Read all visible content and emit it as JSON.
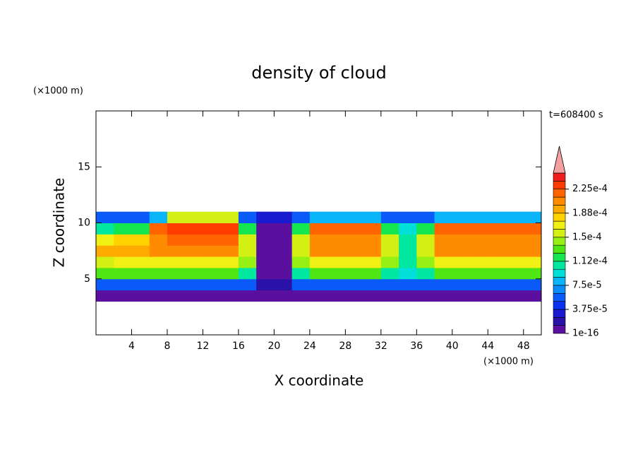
{
  "chart_data": {
    "type": "contour",
    "title": "density of cloud",
    "x_label": "X coordinate",
    "y_label": "Z coordinate",
    "x_unit": "(×1000 m)",
    "y_unit": "(×1000 m)",
    "annotation": "t=608400 s",
    "xlim": [
      0,
      50
    ],
    "ylim": [
      0,
      20
    ],
    "xticks": [
      4,
      8,
      12,
      16,
      20,
      24,
      28,
      32,
      36,
      40,
      44,
      48
    ],
    "yticks": [
      5,
      10,
      15
    ],
    "x": [
      1,
      3,
      5,
      7,
      9,
      11,
      13,
      15,
      17,
      19,
      21,
      23,
      25,
      27,
      29,
      31,
      33,
      35,
      37,
      39,
      41,
      43,
      45,
      47,
      49
    ],
    "y": [
      3.5,
      4.5,
      5.5,
      6.5,
      7.5,
      8.5,
      9.5,
      10.5
    ],
    "z": [
      [
        1e-05,
        1e-05,
        1e-05,
        1e-05,
        1e-05,
        1e-05,
        1e-05,
        1e-05,
        1e-05,
        1e-05,
        1e-05,
        1e-05,
        1e-05,
        1e-05,
        1e-05,
        1e-05,
        1e-05,
        1e-05,
        1e-05,
        1e-05,
        1e-05,
        1e-05,
        1e-05,
        1e-05,
        1e-05
      ],
      [
        6e-05,
        5e-05,
        5e-05,
        6e-05,
        6e-05,
        6e-05,
        6e-05,
        6e-05,
        5e-05,
        2e-05,
        2e-05,
        5e-05,
        6e-05,
        6e-05,
        6e-05,
        6e-05,
        5e-05,
        5e-05,
        5e-05,
        6e-05,
        6e-05,
        6e-05,
        6e-05,
        6e-05,
        6e-05
      ],
      [
        0.00013,
        0.00013,
        0.00013,
        0.00013,
        0.00013,
        0.00013,
        0.00013,
        0.00013,
        0.00011,
        1e-05,
        1e-05,
        0.00011,
        0.00013,
        0.00013,
        0.00013,
        0.00013,
        0.00011,
        9e-05,
        0.00011,
        0.00013,
        0.00013,
        0.00013,
        0.00013,
        0.00013,
        0.00013
      ],
      [
        0.00016,
        0.00017,
        0.00017,
        0.00017,
        0.00017,
        0.00017,
        0.00017,
        0.00017,
        0.00014,
        1e-05,
        1e-05,
        0.00014,
        0.00017,
        0.00017,
        0.00017,
        0.00017,
        0.00014,
        0.0001,
        0.00014,
        0.00017,
        0.00017,
        0.00017,
        0.00017,
        0.00017,
        0.00017
      ],
      [
        0.00019,
        0.00019,
        0.00019,
        0.0002,
        0.0002,
        0.0002,
        0.0002,
        0.0002,
        0.00016,
        1e-05,
        1e-05,
        0.00016,
        0.0002,
        0.0002,
        0.0002,
        0.0002,
        0.00016,
        0.00011,
        0.00016,
        0.0002,
        0.0002,
        0.0002,
        0.0002,
        0.0002,
        0.0002
      ],
      [
        0.00017,
        0.00018,
        0.00018,
        0.00021,
        0.00022,
        0.00022,
        0.00022,
        0.00022,
        0.00015,
        1e-05,
        1e-05,
        0.00015,
        0.00021,
        0.00021,
        0.00021,
        0.00021,
        0.00015,
        0.0001,
        0.00015,
        0.00021,
        0.00021,
        0.00021,
        0.00021,
        0.00021,
        0.00021
      ],
      [
        0.0001,
        0.00012,
        0.00012,
        0.00022,
        0.000235,
        0.000235,
        0.000235,
        0.000235,
        0.00012,
        1e-05,
        1e-05,
        0.00012,
        0.00022,
        0.00022,
        0.00022,
        0.00022,
        0.00012,
        9e-05,
        0.00012,
        0.00022,
        0.00022,
        0.00022,
        0.00022,
        0.00022,
        0.00022
      ],
      [
        5e-05,
        5e-05,
        5e-05,
        8e-05,
        0.00015,
        0.00015,
        0.00015,
        0.00015,
        5e-05,
        3e-05,
        3e-05,
        5e-05,
        8e-05,
        8e-05,
        8e-05,
        8e-05,
        5e-05,
        5e-05,
        5e-05,
        8e-05,
        8e-05,
        8e-05,
        8e-05,
        8e-05,
        8e-05
      ]
    ],
    "colorbar": {
      "levels": [
        1e-16,
        1.25e-05,
        2.5e-05,
        3.75e-05,
        5e-05,
        6.25e-05,
        7.5e-05,
        8.75e-05,
        0.0001,
        0.0001125,
        0.000125,
        0.0001375,
        0.00015,
        0.0001625,
        0.000175,
        0.0001875,
        0.0002,
        0.0002125,
        0.000225,
        0.0002375,
        0.00025
      ],
      "colors": [
        "#5b0f9e",
        "#2a12a8",
        "#1a1ad0",
        "#0a32f0",
        "#0a5af8",
        "#0a8cfa",
        "#0ab4f8",
        "#00e0d8",
        "#00e8a0",
        "#14e650",
        "#50e614",
        "#96f014",
        "#d2f014",
        "#f0f014",
        "#ffd200",
        "#ffaa00",
        "#ff8c00",
        "#ff6400",
        "#ff3c00",
        "#f01e1e"
      ],
      "over_color": "#f4a0a0",
      "ticks": [
        {
          "value": 1e-16,
          "label": "1e-16"
        },
        {
          "value": 3.75e-05,
          "label": "3.75e-5"
        },
        {
          "value": 7.5e-05,
          "label": "7.5e-5"
        },
        {
          "value": 0.0001125,
          "label": "1.12e-4"
        },
        {
          "value": 0.00015,
          "label": "1.5e-4"
        },
        {
          "value": 0.0001875,
          "label": "1.88e-4"
        },
        {
          "value": 0.000225,
          "label": "2.25e-4"
        }
      ]
    }
  }
}
